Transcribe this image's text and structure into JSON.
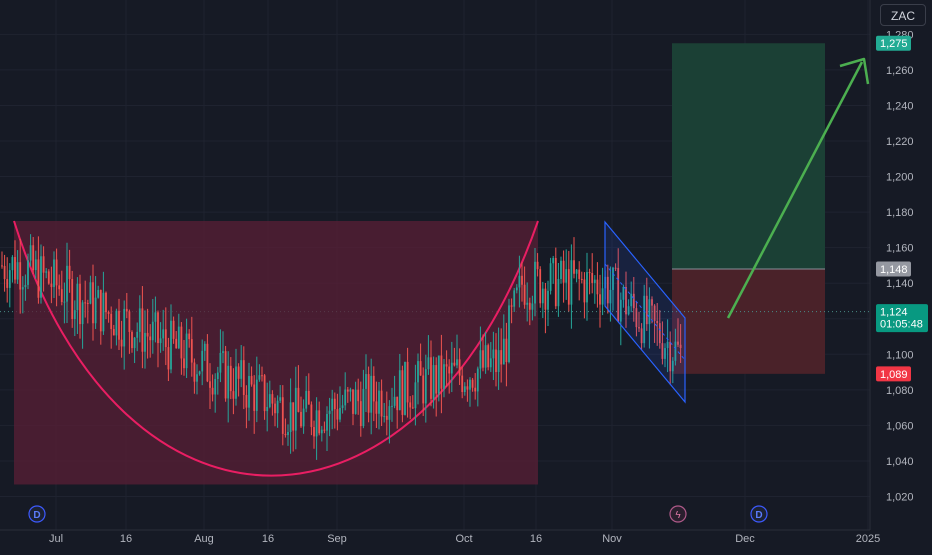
{
  "symbol": "ZAC",
  "colors": {
    "background": "#161a25",
    "grid": "#1f2330",
    "up": "#26a69a",
    "down": "#ef5350",
    "cup": "#e91e63",
    "cup_fill": "#5a1f35",
    "target_zone": "#1b4035",
    "stop_zone": "#4a2229",
    "channel": "#2962ff",
    "arrow": "#4caf50",
    "axis_text": "#b2b5be"
  },
  "chart_data": {
    "type": "candlestick",
    "title": "",
    "price_axis": {
      "ticks": [
        1020,
        1040,
        1060,
        1080,
        1100,
        1120,
        1140,
        1160,
        1180,
        1200,
        1220,
        1240,
        1260,
        1280
      ],
      "tick_labels": [
        "1,020",
        "1,040",
        "1,060",
        "1,080",
        "1,100",
        "1,120",
        "1,140",
        "1,160",
        "1,180",
        "1,200",
        "1,220",
        "1,240",
        "1,260",
        "1,280"
      ],
      "ylim": [
        1012,
        1296
      ]
    },
    "time_axis": {
      "labels": [
        "Jul",
        "16",
        "Aug",
        "16",
        "Sep",
        "Oct",
        "16",
        "Nov",
        "Dec",
        "2025"
      ]
    },
    "price_labels": {
      "target": "1,275",
      "entry": "1,148",
      "current": "1,124",
      "countdown": "01:05:48",
      "stop": "1,089"
    },
    "levels": {
      "target": 1275,
      "entry": 1148,
      "current": 1124,
      "stop": 1089,
      "cup_rim": 1175,
      "cup_bottom": 1029
    },
    "annotations": {
      "event_markers": [
        "D",
        "D"
      ],
      "flash_marker": "ϟ"
    }
  }
}
